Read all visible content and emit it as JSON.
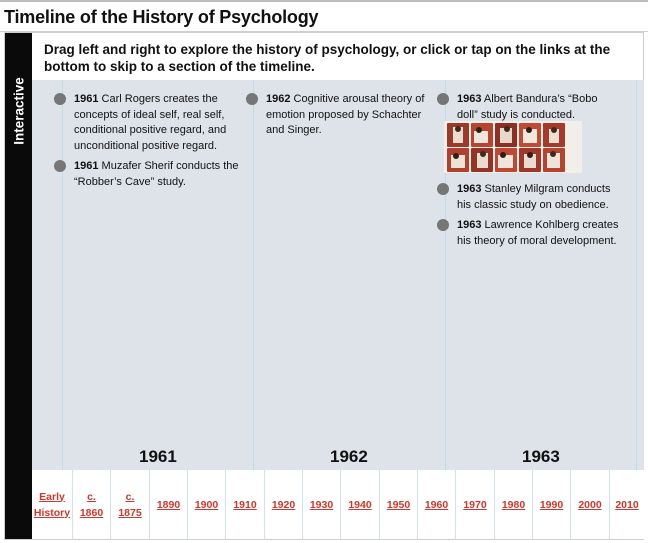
{
  "page": {
    "title": "Timeline of the History of Psychology"
  },
  "widget": {
    "side_tab": "Interactive",
    "instructions": "Drag left and right to explore the history of psychology, or click or tap on the links at the bottom to skip to a section of the timeline."
  },
  "timeline": {
    "columns": [
      {
        "year": "1961",
        "events": [
          {
            "year": "1961",
            "text": " Carl Rogers creates the concepts of ideal self, real self, conditional positive regard, and unconditional positive regard."
          },
          {
            "year": "1961",
            "text": " Muzafer Sherif conducts the “Robber’s Cave” study."
          }
        ]
      },
      {
        "year": "1962",
        "events": [
          {
            "year": "1962",
            "text": " Cognitive arousal theory of emotion proposed by Schachter and Singer."
          }
        ]
      },
      {
        "year": "1963",
        "events": [
          {
            "year": "1963",
            "text": " Albert Bandura’s “Bobo doll” study is conducted."
          },
          {
            "year": "1963",
            "text": " Stanley Milgram conducts his classic study on obedience."
          },
          {
            "year": "1963",
            "text": " Lawrence Kohlberg creates his theory of moral development."
          }
        ]
      }
    ]
  },
  "nav": {
    "links": [
      "Early\nHistory",
      "c.\n1860",
      "c.\n1875",
      "1890",
      "1900",
      "1910",
      "1920",
      "1930",
      "1940",
      "1950",
      "1960",
      "1970",
      "1980",
      "1990",
      "2000",
      "2010"
    ]
  },
  "colors": {
    "track_bg": "#dde3e9",
    "dot": "#767676",
    "link": "#d0362c",
    "side_tab": "#0a0a0a"
  },
  "icons": {
    "event_marker": "dot-icon",
    "bobo_photos": "photo-thumbnail"
  }
}
